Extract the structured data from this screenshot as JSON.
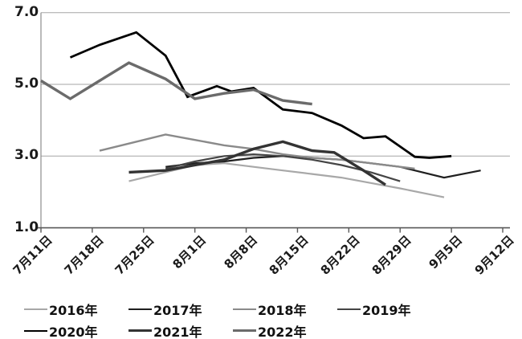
{
  "chart_data": {
    "type": "line",
    "title": "",
    "xlabel": "",
    "ylabel": "",
    "ylim": [
      1.0,
      7.0
    ],
    "grid": "horizontal",
    "legend_position": "bottom",
    "y_tick_labels": [
      "7.0",
      "5.0",
      "3.0",
      "1.0"
    ],
    "y_tick_values": [
      7.0,
      5.0,
      3.0,
      1.0
    ],
    "x_tick_labels": [
      "7月11日",
      "7月18日",
      "7月25日",
      "8月1日",
      "8月8日",
      "8月15日",
      "8月22日",
      "8月29日",
      "9月5日",
      "9月12日"
    ],
    "x_tick_days": [
      0,
      7,
      14,
      21,
      28,
      35,
      42,
      49,
      56,
      63
    ],
    "series": [
      {
        "name": "2016年",
        "color": "#a8a8a8",
        "width": 2.2,
        "points": [
          [
            12,
            2.3
          ],
          [
            17,
            2.55
          ],
          [
            21,
            2.75
          ],
          [
            25,
            2.8
          ],
          [
            29,
            2.7
          ],
          [
            33,
            2.6
          ],
          [
            37,
            2.5
          ],
          [
            41,
            2.4
          ],
          [
            45,
            2.25
          ],
          [
            49,
            2.1
          ],
          [
            55,
            1.85
          ]
        ]
      },
      {
        "name": "2017年",
        "color": "#1f1f1f",
        "width": 2.2,
        "points": [
          [
            17,
            2.7
          ],
          [
            21,
            2.8
          ],
          [
            25,
            2.85
          ],
          [
            29,
            2.95
          ],
          [
            33,
            3.0
          ],
          [
            37,
            2.95
          ],
          [
            41,
            2.9
          ],
          [
            45,
            2.8
          ],
          [
            49,
            2.7
          ],
          [
            51,
            2.6
          ],
          [
            55,
            2.4
          ],
          [
            60,
            2.6
          ]
        ]
      },
      {
        "name": "2018年",
        "color": "#8a8a8a",
        "width": 2.4,
        "points": [
          [
            8,
            3.15
          ],
          [
            12,
            3.35
          ],
          [
            17,
            3.6
          ],
          [
            21,
            3.45
          ],
          [
            25,
            3.3
          ],
          [
            29,
            3.2
          ],
          [
            33,
            3.05
          ],
          [
            37,
            2.95
          ],
          [
            41,
            2.9
          ],
          [
            45,
            2.8
          ],
          [
            49,
            2.7
          ],
          [
            51,
            2.65
          ]
        ]
      },
      {
        "name": "2019年",
        "color": "#454545",
        "width": 2.2,
        "points": [
          [
            17,
            2.65
          ],
          [
            21,
            2.85
          ],
          [
            25,
            3.0
          ],
          [
            29,
            3.05
          ],
          [
            33,
            3.0
          ],
          [
            37,
            2.9
          ],
          [
            41,
            2.75
          ],
          [
            45,
            2.55
          ],
          [
            49,
            2.3
          ]
        ]
      },
      {
        "name": "2020年",
        "color": "#000000",
        "width": 2.8,
        "points": [
          [
            4,
            5.75
          ],
          [
            8,
            6.1
          ],
          [
            13,
            6.45
          ],
          [
            17,
            5.8
          ],
          [
            20,
            4.65
          ],
          [
            24,
            4.95
          ],
          [
            26,
            4.8
          ],
          [
            29,
            4.9
          ],
          [
            33,
            4.3
          ],
          [
            37,
            4.2
          ],
          [
            41,
            3.85
          ],
          [
            44,
            3.5
          ],
          [
            47,
            3.55
          ],
          [
            51,
            2.98
          ],
          [
            53,
            2.95
          ],
          [
            56,
            3.0
          ]
        ]
      },
      {
        "name": "2021年",
        "color": "#333333",
        "width": 3.4,
        "points": [
          [
            12,
            2.55
          ],
          [
            17,
            2.6
          ],
          [
            21,
            2.75
          ],
          [
            25,
            2.9
          ],
          [
            29,
            3.2
          ],
          [
            33,
            3.4
          ],
          [
            37,
            3.15
          ],
          [
            40,
            3.1
          ],
          [
            44,
            2.6
          ],
          [
            47,
            2.2
          ]
        ]
      },
      {
        "name": "2022年",
        "color": "#6b6b6b",
        "width": 3.4,
        "points": [
          [
            0,
            5.1
          ],
          [
            4,
            4.6
          ],
          [
            8,
            5.1
          ],
          [
            12,
            5.6
          ],
          [
            17,
            5.15
          ],
          [
            21,
            4.6
          ],
          [
            25,
            4.75
          ],
          [
            29,
            4.85
          ],
          [
            33,
            4.55
          ],
          [
            37,
            4.45
          ]
        ]
      }
    ],
    "axis_colors": {
      "gridline": "#a6a6a6",
      "axis_line": "#595959",
      "y_axis_line": "#8c8c8c"
    }
  },
  "legend": {
    "items": [
      "2016年",
      "2017年",
      "2018年",
      "2019年",
      "2020年",
      "2021年",
      "2022年"
    ]
  }
}
